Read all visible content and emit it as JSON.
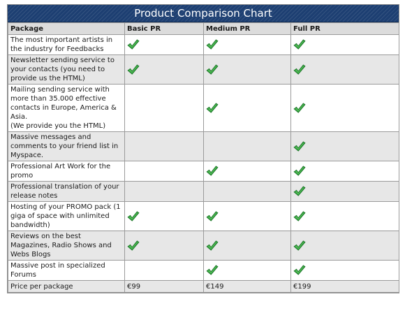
{
  "chart": {
    "title": "Product Comparison Chart",
    "columns": [
      "Package",
      "Basic PR",
      "Medium PR",
      "Full PR"
    ],
    "rows": [
      {
        "feature": "The most important artists in the industry for Feedbacks",
        "basic": true,
        "medium": true,
        "full": true
      },
      {
        "feature": " Newsletter sending service to your contacts (you need to provide us the HTML)",
        "basic": true,
        "medium": true,
        "full": true
      },
      {
        "feature": "Mailing sending service with more than 35.000 effective contacts in Europe, America & Asia.\n(We provide you the HTML)",
        "basic": false,
        "medium": true,
        "full": true
      },
      {
        "feature": "Massive messages and comments to your friend list in Myspace.",
        "basic": false,
        "medium": false,
        "full": true
      },
      {
        "feature": "Professional Art Work for the promo",
        "basic": false,
        "medium": true,
        "full": true
      },
      {
        "feature": "Professional translation of your release notes",
        "basic": false,
        "medium": false,
        "full": true
      },
      {
        "feature": "Hosting of your PROMO pack (1 giga of space with unlimited bandwidth)",
        "basic": true,
        "medium": true,
        "full": true
      },
      {
        "feature": "Reviews on the best Magazines, Radio Shows and Webs Blogs",
        "basic": true,
        "medium": true,
        "full": true
      },
      {
        "feature": "Massive post in specialized Forums",
        "basic": false,
        "medium": true,
        "full": true
      }
    ],
    "price": {
      "label": "Price per package",
      "basic": "€99",
      "medium": "€149",
      "full": "€199"
    },
    "icon": "checkmark-icon",
    "header_color": "#1d3f72",
    "check_color": "#2e9e3a"
  }
}
